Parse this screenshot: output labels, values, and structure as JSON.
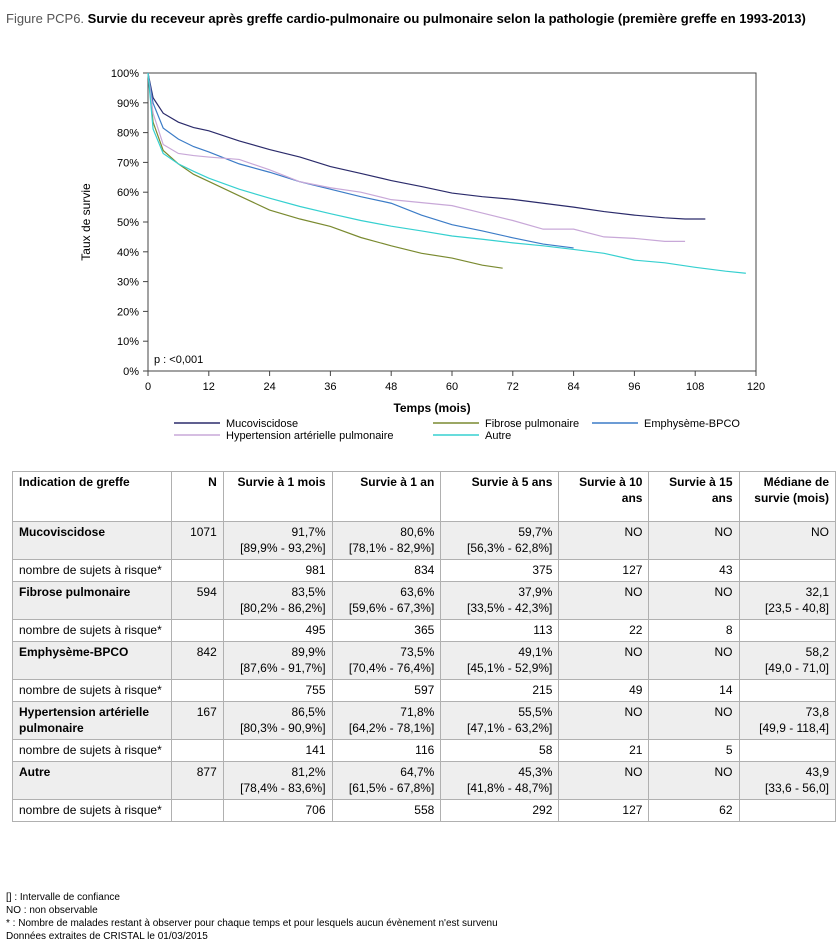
{
  "title": {
    "prefix": "Figure PCP6.",
    "text": "Survie du receveur après greffe cardio-pulmonaire ou pulmonaire selon la pathologie (première greffe en 1993-2013)"
  },
  "chart_data": {
    "type": "line",
    "xlabel": "Temps (mois)",
    "ylabel": "Taux de survie",
    "xlim": [
      0,
      120
    ],
    "ylim": [
      0,
      100
    ],
    "xticks": [
      0,
      12,
      24,
      36,
      48,
      60,
      72,
      84,
      96,
      108,
      120
    ],
    "yticks": [
      0,
      10,
      20,
      30,
      40,
      50,
      60,
      70,
      80,
      90,
      100
    ],
    "ytick_suffix": "%",
    "annotation": "p : <0,001",
    "grid": false,
    "legend_position": "bottom",
    "series": [
      {
        "name": "Mucoviscidose",
        "color": "#2b2b6b",
        "x": [
          0,
          1,
          3,
          6,
          9,
          12,
          18,
          24,
          30,
          36,
          42,
          48,
          54,
          60,
          66,
          72,
          78,
          84,
          90,
          96,
          102,
          106,
          110
        ],
        "y": [
          100,
          91.7,
          86.5,
          83.5,
          81.7,
          80.6,
          77.2,
          74.3,
          71.8,
          68.6,
          66.3,
          63.9,
          61.9,
          59.7,
          58.5,
          57.6,
          56.3,
          55.0,
          53.5,
          52.3,
          51.4,
          51.0,
          51.0
        ]
      },
      {
        "name": "Fibrose pulmonaire",
        "color": "#7a8a30",
        "x": [
          0,
          1,
          3,
          6,
          9,
          12,
          18,
          24,
          30,
          36,
          42,
          48,
          54,
          60,
          66,
          70
        ],
        "y": [
          100,
          83.5,
          74.0,
          69.5,
          66.0,
          63.6,
          58.8,
          54.0,
          51.0,
          48.5,
          44.8,
          42.0,
          39.5,
          37.9,
          35.5,
          34.5
        ]
      },
      {
        "name": "Emphysème-BPCO",
        "color": "#3c7cc7",
        "x": [
          0,
          1,
          3,
          6,
          9,
          12,
          18,
          24,
          30,
          36,
          42,
          48,
          54,
          60,
          66,
          72,
          78,
          84
        ],
        "y": [
          100,
          89.9,
          81.5,
          77.8,
          75.3,
          73.5,
          69.5,
          66.7,
          63.5,
          61.0,
          58.5,
          56.3,
          52.3,
          49.1,
          47.0,
          44.7,
          42.6,
          41.3
        ]
      },
      {
        "name": "Hypertension artérielle pulmonaire",
        "color": "#c8a8d8",
        "x": [
          0,
          1,
          3,
          6,
          9,
          12,
          18,
          24,
          30,
          36,
          42,
          48,
          54,
          60,
          66,
          72,
          78,
          84,
          90,
          96,
          102,
          106
        ],
        "y": [
          100,
          86.5,
          76.0,
          73.0,
          72.3,
          71.8,
          71.0,
          67.5,
          63.5,
          61.5,
          60.0,
          57.5,
          56.5,
          55.5,
          53.0,
          50.5,
          47.6,
          47.6,
          45.0,
          44.5,
          43.5,
          43.5
        ]
      },
      {
        "name": "Autre",
        "color": "#36d0d0",
        "x": [
          0,
          1,
          3,
          6,
          9,
          12,
          18,
          24,
          30,
          36,
          42,
          48,
          54,
          60,
          66,
          72,
          78,
          84,
          90,
          96,
          102,
          108,
          114,
          118
        ],
        "y": [
          100,
          81.2,
          73.0,
          69.5,
          67.0,
          64.7,
          61.0,
          58.0,
          55.2,
          52.8,
          50.5,
          48.6,
          47.0,
          45.3,
          44.2,
          43.0,
          42.0,
          40.8,
          39.5,
          37.2,
          36.3,
          34.8,
          33.5,
          32.8
        ]
      }
    ]
  },
  "table": {
    "headers": [
      "Indication de greffe",
      "N",
      "Survie à 1 mois",
      "Survie à 1 an",
      "Survie à 5 ans",
      "Survie à 10 ans",
      "Survie à 15 ans",
      "Médiane de survie (mois)"
    ],
    "groups": [
      {
        "name": "Mucoviscidose",
        "n": "1071",
        "m1": "91,7%",
        "m1_ci": "[89,9% - 93,2%]",
        "y1": "80,6%",
        "y1_ci": "[78,1% - 82,9%]",
        "y5": "59,7%",
        "y5_ci": "[56,3% - 62,8%]",
        "y10": "NO",
        "y15": "NO",
        "median": "NO",
        "median_ci": "",
        "risk_label": "nombre de sujets à risque*",
        "risk": [
          "981",
          "834",
          "375",
          "127",
          "43"
        ]
      },
      {
        "name": "Fibrose pulmonaire",
        "n": "594",
        "m1": "83,5%",
        "m1_ci": "[80,2% - 86,2%]",
        "y1": "63,6%",
        "y1_ci": "[59,6% - 67,3%]",
        "y5": "37,9%",
        "y5_ci": "[33,5% - 42,3%]",
        "y10": "NO",
        "y15": "NO",
        "median": "32,1",
        "median_ci": "[23,5 - 40,8]",
        "risk_label": "nombre de sujets à risque*",
        "risk": [
          "495",
          "365",
          "113",
          "22",
          "8"
        ]
      },
      {
        "name": "Emphysème-BPCO",
        "n": "842",
        "m1": "89,9%",
        "m1_ci": "[87,6% - 91,7%]",
        "y1": "73,5%",
        "y1_ci": "[70,4% - 76,4%]",
        "y5": "49,1%",
        "y5_ci": "[45,1% - 52,9%]",
        "y10": "NO",
        "y15": "NO",
        "median": "58,2",
        "median_ci": "[49,0 - 71,0]",
        "risk_label": "nombre de sujets à risque*",
        "risk": [
          "755",
          "597",
          "215",
          "49",
          "14"
        ]
      },
      {
        "name": "Hypertension artérielle pulmonaire",
        "n": "167",
        "m1": "86,5%",
        "m1_ci": "[80,3% - 90,9%]",
        "y1": "71,8%",
        "y1_ci": "[64,2% - 78,1%]",
        "y5": "55,5%",
        "y5_ci": "[47,1% - 63,2%]",
        "y10": "NO",
        "y15": "NO",
        "median": "73,8",
        "median_ci": "[49,9 - 118,4]",
        "risk_label": "nombre de sujets à risque*",
        "risk": [
          "141",
          "116",
          "58",
          "21",
          "5"
        ]
      },
      {
        "name": "Autre",
        "n": "877",
        "m1": "81,2%",
        "m1_ci": "[78,4% - 83,6%]",
        "y1": "64,7%",
        "y1_ci": "[61,5% - 67,8%]",
        "y5": "45,3%",
        "y5_ci": "[41,8% - 48,7%]",
        "y10": "NO",
        "y15": "NO",
        "median": "43,9",
        "median_ci": "[33,6 - 56,0]",
        "risk_label": "nombre de sujets à risque*",
        "risk": [
          "706",
          "558",
          "292",
          "127",
          "62"
        ]
      }
    ]
  },
  "notes": [
    "[] : Intervalle de confiance",
    "NO : non observable",
    "* : Nombre de malades restant à observer pour chaque temps et pour lesquels aucun évènement n'est survenu",
    "Données extraites de CRISTAL le 01/03/2015"
  ]
}
